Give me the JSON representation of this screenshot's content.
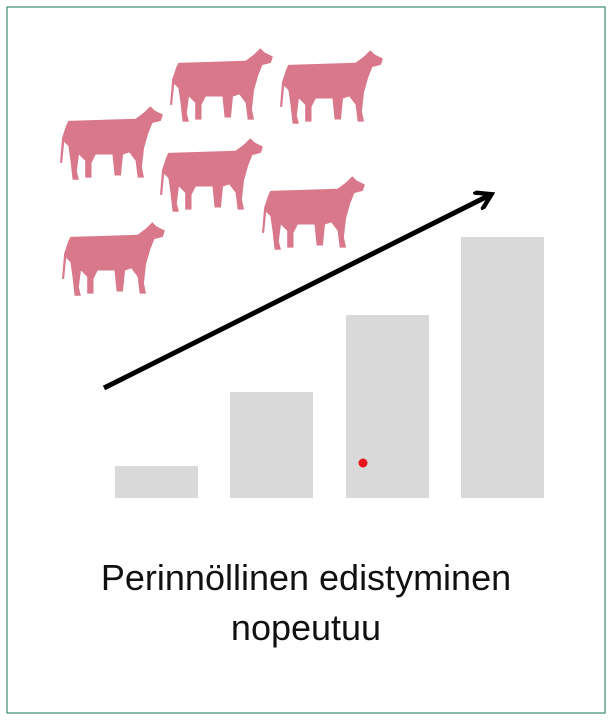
{
  "caption": {
    "lines": [
      "Perinnöllinen edistyminen",
      "nopeutuu"
    ]
  }
}
